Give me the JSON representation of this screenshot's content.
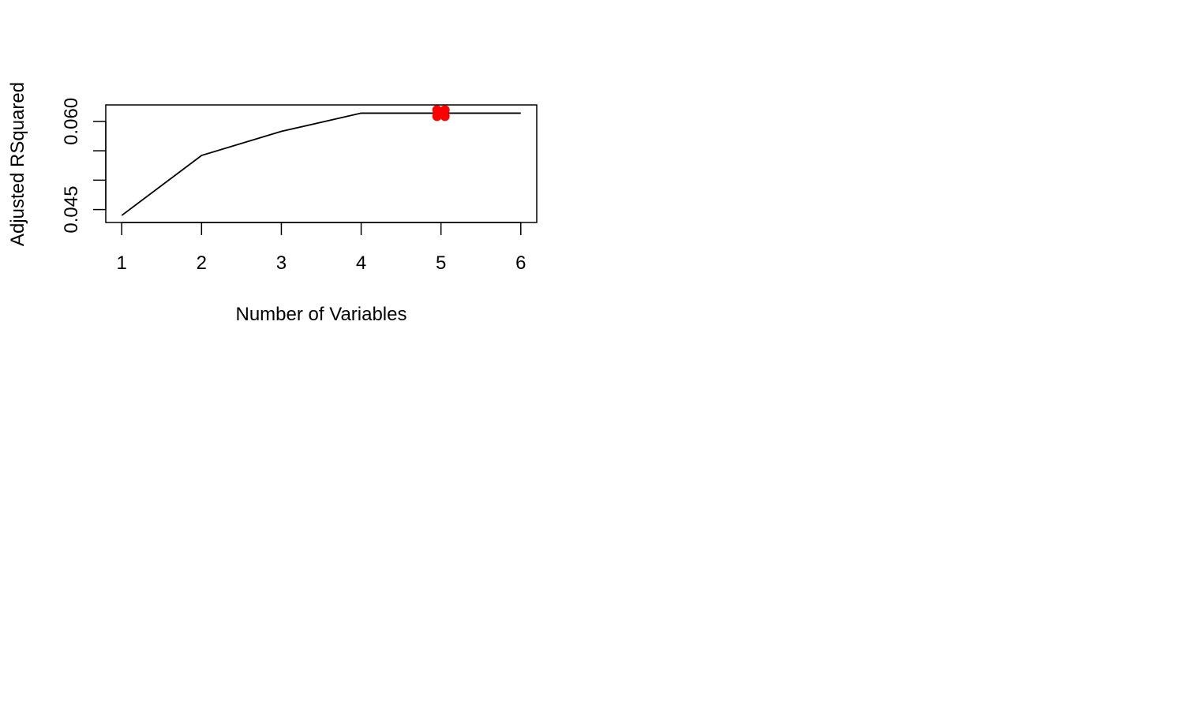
{
  "chart_data": {
    "type": "line",
    "title": "",
    "xlabel": "Number of Variables",
    "ylabel": "Adjusted RSquared",
    "x": [
      1,
      2,
      3,
      4,
      5,
      6
    ],
    "y": [
      0.044,
      0.0542,
      0.0583,
      0.0614,
      0.0614,
      0.0614
    ],
    "xlim": [
      0.8,
      6.2
    ],
    "ylim": [
      0.0428,
      0.0628
    ],
    "x_ticks": [
      1,
      2,
      3,
      4,
      5,
      6
    ],
    "x_tick_labels": [
      "1",
      "2",
      "3",
      "4",
      "5",
      "6"
    ],
    "y_ticks": [
      0.045,
      0.05,
      0.055,
      0.06
    ],
    "y_tick_labels": [
      "0.045",
      "",
      "",
      "0.060"
    ],
    "highlight": {
      "x": 5,
      "y": 0.0614,
      "color": "#ff0000"
    },
    "line_color": "#000000",
    "grid": false,
    "legend": "none"
  }
}
